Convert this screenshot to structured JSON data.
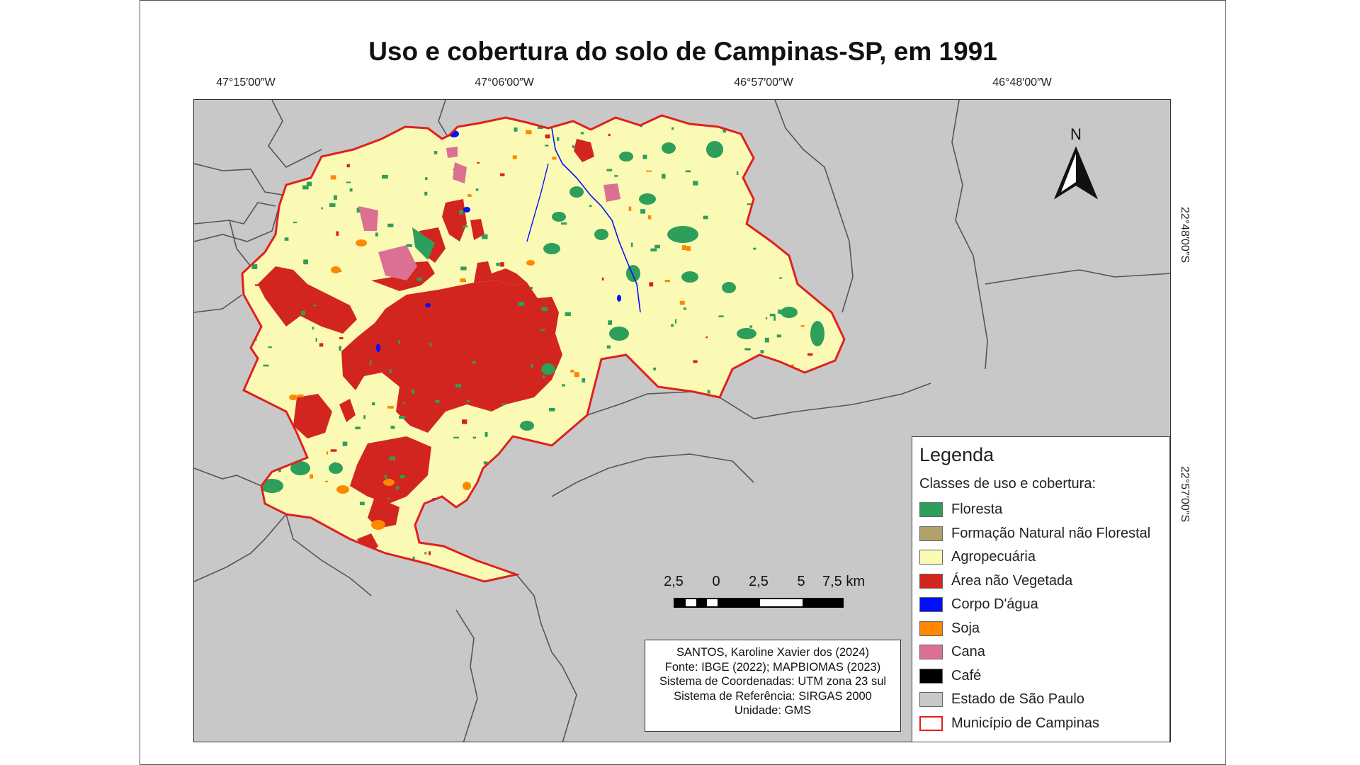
{
  "title": "Uso e cobertura do solo de Campinas-SP, em 1991",
  "coordinates": {
    "top": [
      "47°15′00″W",
      "47°06′00″W",
      "46°57′00″W",
      "46°48′00″W"
    ],
    "right": [
      "22°48′00″S",
      "22°57′00″S"
    ]
  },
  "north_label": "N",
  "legend": {
    "title": "Legenda",
    "subtitle": "Classes de uso e cobertura:",
    "items": [
      {
        "label": "Floresta",
        "color": "#2e9e5b"
      },
      {
        "label": "Formação Natural não Florestal",
        "color": "#b0a06a"
      },
      {
        "label": "Agropecuária",
        "color": "#fbfab5"
      },
      {
        "label": "Área não Vegetada",
        "color": "#d3251f"
      },
      {
        "label": "Corpo D'água",
        "color": "#0010ff"
      },
      {
        "label": "Soja",
        "color": "#ff8800"
      },
      {
        "label": "Cana",
        "color": "#db7093"
      },
      {
        "label": "Café",
        "color": "#000000"
      },
      {
        "label": "Estado de São Paulo",
        "color": "#c8c8c8"
      },
      {
        "label": "Município de Campinas",
        "color": "#ffffff",
        "border": "#e02020"
      }
    ]
  },
  "scale": {
    "labels": [
      "2,5",
      "0",
      "2,5",
      "5",
      "7,5 km"
    ]
  },
  "credits": [
    "SANTOS, Karoline Xavier dos (2024)",
    "Fonte: IBGE (2022); MAPBIOMAS (2023)",
    "Sistema de Coordenadas: UTM zona 23 sul",
    "Sistema de Referência: SIRGAS 2000",
    "Unidade: GMS"
  ]
}
